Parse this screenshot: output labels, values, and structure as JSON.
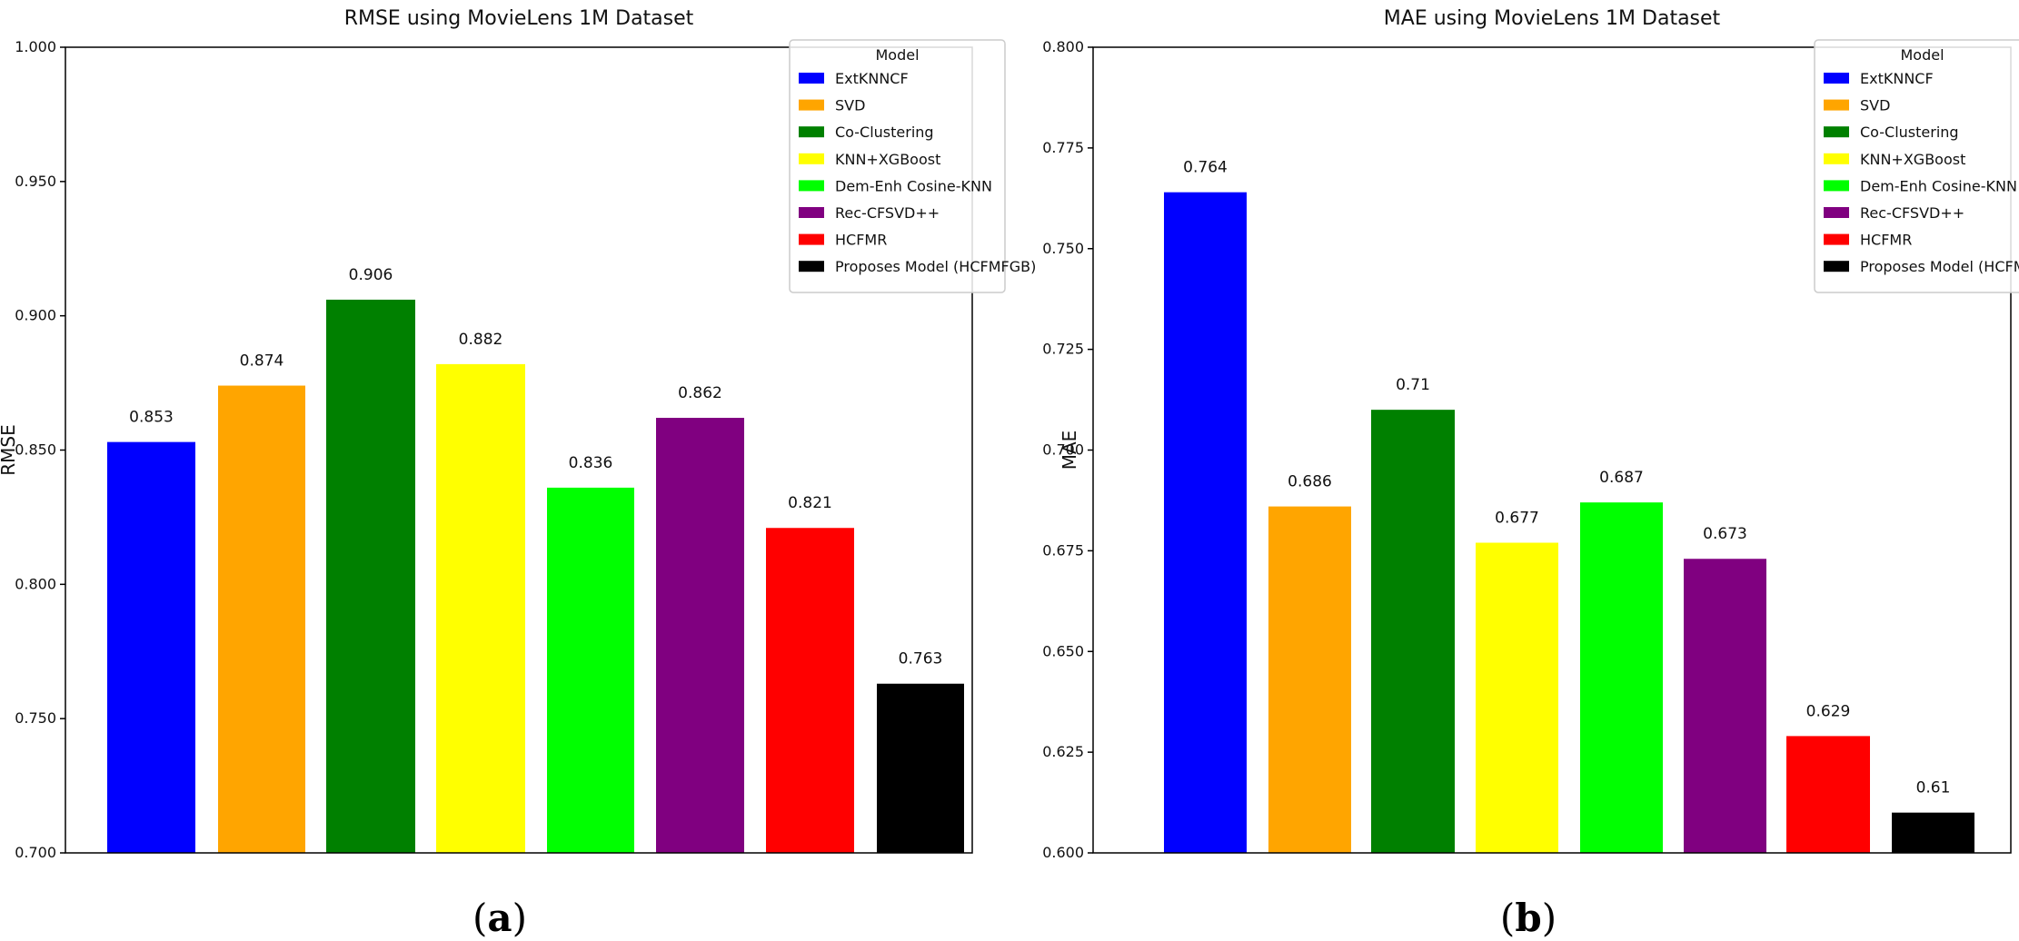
{
  "chart_data": [
    {
      "type": "bar",
      "title": "RMSE using MovieLens 1M Dataset",
      "xlabel": "",
      "ylabel": "RMSE",
      "ylim": [
        0.7,
        1.0
      ],
      "yticks": [
        "0.700",
        "0.750",
        "0.800",
        "0.850",
        "0.900",
        "0.950",
        "1.000"
      ],
      "yticks_values": [
        0.7,
        0.75,
        0.8,
        0.85,
        0.9,
        0.95,
        1.0
      ],
      "categories": [
        "ExtKNNCF",
        "SVD",
        "Co-Clustering",
        "KNN+XGBoost",
        "Dem-Enh Cosine-KNN",
        "Rec-CFSVD++",
        "HCFMR",
        "Proposes Model (HCFMFGB)"
      ],
      "values": [
        0.853,
        0.874,
        0.906,
        0.882,
        0.836,
        0.862,
        0.821,
        0.763
      ],
      "value_labels": [
        "0.853",
        "0.874",
        "0.906",
        "0.882",
        "0.836",
        "0.862",
        "0.821",
        "0.763"
      ],
      "colors": [
        "#0000ff",
        "#ffa500",
        "#008000",
        "#ffff00",
        "#00ff00",
        "#800080",
        "#ff0000",
        "#000000"
      ],
      "legend_title": "Model",
      "legend_position": "top-right",
      "caption": "(a)"
    },
    {
      "type": "bar",
      "title": "MAE using MovieLens 1M Dataset",
      "xlabel": "",
      "ylabel": "MAE",
      "ylim": [
        0.6,
        0.8
      ],
      "yticks": [
        "0.600",
        "0.625",
        "0.650",
        "0.675",
        "0.700",
        "0.725",
        "0.750",
        "0.775",
        "0.800"
      ],
      "yticks_values": [
        0.6,
        0.625,
        0.65,
        0.675,
        0.7,
        0.725,
        0.75,
        0.775,
        0.8
      ],
      "categories": [
        "ExtKNNCF",
        "SVD",
        "Co-Clustering",
        "KNN+XGBoost",
        "Dem-Enh Cosine-KNN",
        "Rec-CFSVD++",
        "HCFMR",
        "Proposes Model (HCFMFGB)"
      ],
      "values": [
        0.764,
        0.686,
        0.71,
        0.677,
        0.687,
        0.673,
        0.629,
        0.61
      ],
      "value_labels": [
        "0.764",
        "0.686",
        "0.71",
        "0.677",
        "0.687",
        "0.673",
        "0.629",
        "0.61"
      ],
      "colors": [
        "#0000ff",
        "#ffa500",
        "#008000",
        "#ffff00",
        "#00ff00",
        "#800080",
        "#ff0000",
        "#000000"
      ],
      "legend_title": "Model",
      "legend_position": "top-right",
      "caption": "(b)"
    }
  ]
}
